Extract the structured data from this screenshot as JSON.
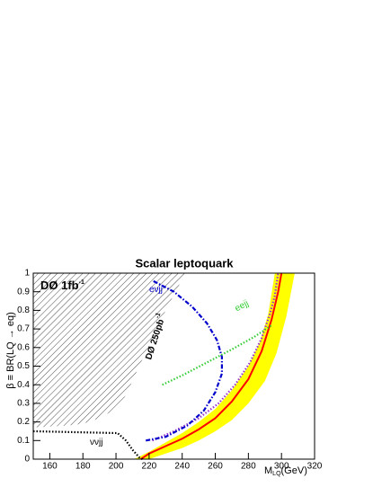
{
  "chart_data": {
    "type": "line",
    "title": "Scalar leptoquark",
    "y_label": "β ≡ BR(LQ → eq)",
    "x_label": {
      "main": "M",
      "sub": "LQ",
      "unit": "(GeV)"
    },
    "xlim": [
      150,
      320
    ],
    "ylim": [
      0,
      1
    ],
    "xticks": [
      160,
      180,
      200,
      220,
      240,
      260,
      280,
      300,
      320
    ],
    "yticks": [
      0,
      0.1,
      0.2,
      0.3,
      0.4,
      0.5,
      0.6,
      0.7,
      0.8,
      0.9,
      1
    ],
    "hatched": {
      "x": [
        150,
        242,
        236,
        230,
        225,
        220,
        215,
        210,
        205,
        198,
        190,
        180,
        170,
        150
      ],
      "values": [
        1,
        1,
        0.9,
        0.8,
        0.7,
        0.6,
        0.52,
        0.42,
        0.33,
        0.26,
        0.22,
        0.19,
        0.18,
        0.17
      ]
    },
    "band": {
      "color": "#ffff00",
      "lower": {
        "x": [
          211,
          220,
          230,
          240,
          250,
          260,
          270,
          280,
          287,
          292,
          296
        ],
        "values": [
          0,
          0.04,
          0.09,
          0.14,
          0.2,
          0.27,
          0.37,
          0.5,
          0.63,
          0.78,
          1
        ]
      },
      "upper": {
        "x": [
          220,
          230,
          240,
          250,
          260,
          270,
          280,
          290,
          297,
          303,
          308
        ],
        "values": [
          0,
          0.03,
          0.06,
          0.1,
          0.15,
          0.21,
          0.3,
          0.42,
          0.57,
          0.77,
          1
        ]
      }
    },
    "series": [
      {
        "color": "#ff0000",
        "style": "solid",
        "x": [
          215,
          220,
          230,
          240,
          250,
          260,
          270,
          280,
          288,
          294,
          298,
          300
        ],
        "values": [
          0,
          0.03,
          0.07,
          0.11,
          0.16,
          0.22,
          0.31,
          0.43,
          0.58,
          0.75,
          0.9,
          1
        ]
      },
      {
        "color": "#9933cc",
        "style": "dotted",
        "x": [
          222,
          235,
          250,
          262,
          272,
          281,
          288,
          293,
          296,
          298
        ],
        "values": [
          0.1,
          0.15,
          0.22,
          0.3,
          0.4,
          0.52,
          0.65,
          0.78,
          0.88,
          1
        ]
      },
      {
        "color": "#0000cc",
        "style": "dashdot",
        "x": [
          218,
          230,
          243,
          253,
          260,
          264,
          264,
          261,
          255,
          246,
          235,
          222
        ],
        "values": [
          0.1,
          0.12,
          0.18,
          0.26,
          0.36,
          0.46,
          0.55,
          0.64,
          0.73,
          0.82,
          0.9,
          0.96
        ]
      },
      {
        "color": "#33cc33",
        "style": "dotted",
        "x": [
          228,
          240,
          255,
          270,
          284,
          294
        ],
        "values": [
          0.4,
          0.45,
          0.52,
          0.59,
          0.66,
          0.72
        ]
      },
      {
        "color": "#000000",
        "style": "dotted",
        "x": [
          150,
          175,
          201,
          206,
          210,
          214,
          216
        ],
        "values": [
          0.15,
          0.145,
          0.14,
          0.1,
          0.05,
          0.01,
          0
        ]
      }
    ],
    "annotations": [
      {
        "text": "DØ 1fb",
        "sup": "-1"
      },
      {
        "text": "DØ 250pb",
        "sup": "-1"
      },
      {
        "text": "eejj"
      },
      {
        "text": "eνjj"
      },
      {
        "text": "ννjj"
      }
    ]
  }
}
